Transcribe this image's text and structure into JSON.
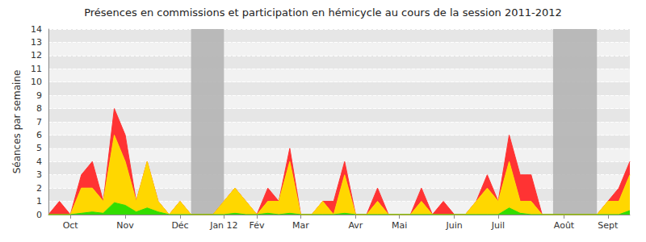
{
  "chart_data": {
    "type": "area",
    "title": "Présences en commissions et participation en hémicycle au cours de la session 2011-2012",
    "y_label": "Séances par semaine",
    "stacked": true,
    "grid": true,
    "categories": [
      null,
      null,
      "Oct",
      null,
      null,
      null,
      null,
      "Nov",
      null,
      null,
      null,
      null,
      "Déc",
      null,
      null,
      null,
      "Jan 12",
      null,
      null,
      "Fév",
      null,
      null,
      null,
      "Mar",
      null,
      null,
      null,
      null,
      "Avr",
      null,
      null,
      null,
      "Mai",
      null,
      null,
      null,
      null,
      "Juin",
      null,
      null,
      null,
      "Juil",
      null,
      null,
      null,
      null,
      null,
      "Août",
      null,
      null,
      null,
      "Sept",
      null,
      null
    ],
    "series": [
      {
        "color": "#33dd00",
        "values": [
          0,
          0,
          0,
          0.1,
          0.2,
          0.1,
          0.9,
          0.7,
          0.2,
          0.5,
          0.2,
          0,
          0,
          0,
          0,
          0,
          0,
          0.1,
          0,
          0,
          0.1,
          0,
          0.1,
          0,
          0,
          0,
          0,
          0.1,
          0,
          0,
          0,
          0,
          0,
          0,
          0,
          0,
          0,
          0,
          0,
          0,
          0,
          0,
          0.5,
          0.1,
          0,
          0,
          0,
          0,
          0,
          0,
          0,
          0,
          0,
          0.3
        ]
      },
      {
        "color": "#ffd700",
        "values": [
          0,
          0,
          0,
          1.9,
          1.8,
          0.9,
          5.1,
          3.3,
          0.8,
          3.5,
          0.8,
          0,
          1,
          0,
          0,
          0,
          1,
          1.9,
          1,
          0,
          0.9,
          1,
          3.9,
          0,
          0,
          1,
          0,
          2.9,
          0,
          0,
          1,
          0,
          0,
          0,
          1,
          0,
          0,
          0,
          0,
          1,
          2,
          1,
          3.5,
          0.9,
          1,
          0,
          0,
          0,
          0,
          0,
          0,
          1,
          1,
          2.7
        ]
      },
      {
        "color": "#ff3333",
        "values": [
          0,
          1,
          0,
          1,
          2,
          0,
          2,
          2,
          0,
          0,
          0,
          0,
          0,
          0,
          0,
          0,
          0,
          0,
          0,
          0,
          1,
          0,
          1,
          0,
          0,
          0,
          1,
          1,
          0,
          0,
          1,
          0,
          0,
          0,
          1,
          0,
          1,
          0,
          0,
          0,
          1,
          0,
          2,
          2,
          2,
          0,
          0,
          0,
          0,
          0,
          0,
          0,
          1,
          1
        ]
      }
    ],
    "shaded_periods": [
      [
        13,
        16
      ],
      [
        46,
        50
      ]
    ],
    "ylim": [
      0,
      14
    ],
    "yticks": [
      0,
      1,
      2,
      3,
      4,
      5,
      6,
      7,
      8,
      9,
      10,
      11,
      12,
      13,
      14
    ]
  }
}
